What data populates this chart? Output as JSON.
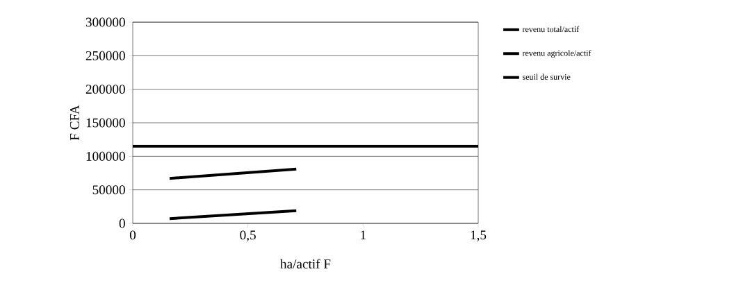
{
  "chart_data": {
    "type": "line",
    "xlabel": "ha/actif F",
    "ylabel": "F CFA",
    "xlim": [
      0,
      1.5
    ],
    "xticks": [
      0,
      {
        "value": 0.5,
        "label": "0,5"
      },
      1,
      {
        "value": 1.5,
        "label": "1,5"
      }
    ],
    "ylim": [
      0,
      300000
    ],
    "yticks": [
      0,
      50000,
      100000,
      150000,
      200000,
      250000,
      300000
    ],
    "grid": "y",
    "legend": "top right",
    "marker": "none",
    "line_style": "solid",
    "series": [
      {
        "name": "revenu total/actif",
        "color": "#000000",
        "x": [
          0.16,
          0.71
        ],
        "values": [
          67000,
          81000
        ]
      },
      {
        "name": "revenu agricole/actif",
        "color": "#000000",
        "x": [
          0.16,
          0.71
        ],
        "values": [
          7000,
          19000
        ]
      },
      {
        "name": "seuil de survie",
        "color": "#000000",
        "x": [
          0,
          1.5
        ],
        "values": [
          115000,
          115000
        ]
      }
    ]
  }
}
